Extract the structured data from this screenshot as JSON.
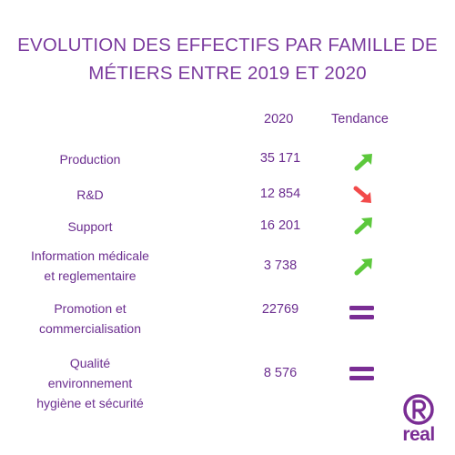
{
  "title": {
    "line1": "EVOLUTION DES EFFECTIFS PAR FAMILLE DE",
    "line2": "MÉTIERS ENTRE 2019 ET 2020"
  },
  "headers": {
    "year": "2020",
    "trend": "Tendance"
  },
  "rows": [
    {
      "lines": [
        "Production"
      ],
      "value": "35 171",
      "trend": "up"
    },
    {
      "lines": [
        "R&D"
      ],
      "value": "12 854",
      "trend": "down"
    },
    {
      "lines": [
        "Support"
      ],
      "value": "16 201",
      "trend": "up"
    },
    {
      "lines": [
        "Information médicale",
        "et reglementaire"
      ],
      "value": "3 738",
      "trend": "up"
    },
    {
      "lines": [
        "Promotion et",
        "commercialisation"
      ],
      "value": "22769",
      "trend": "stable"
    },
    {
      "lines": [
        "Qualité",
        "environnement",
        "hygiène et sécurité"
      ],
      "value": "8 576",
      "trend": "stable"
    }
  ],
  "trend_icons": {
    "up": "arrow-up-right-icon",
    "down": "arrow-down-right-icon",
    "stable": "equals-icon"
  },
  "colors": {
    "text": "#6b2d8f",
    "up": "#5cc83c",
    "down": "#f24a4a",
    "stable": "#7a2d94"
  },
  "logo": {
    "letter": "R",
    "text": "real"
  }
}
